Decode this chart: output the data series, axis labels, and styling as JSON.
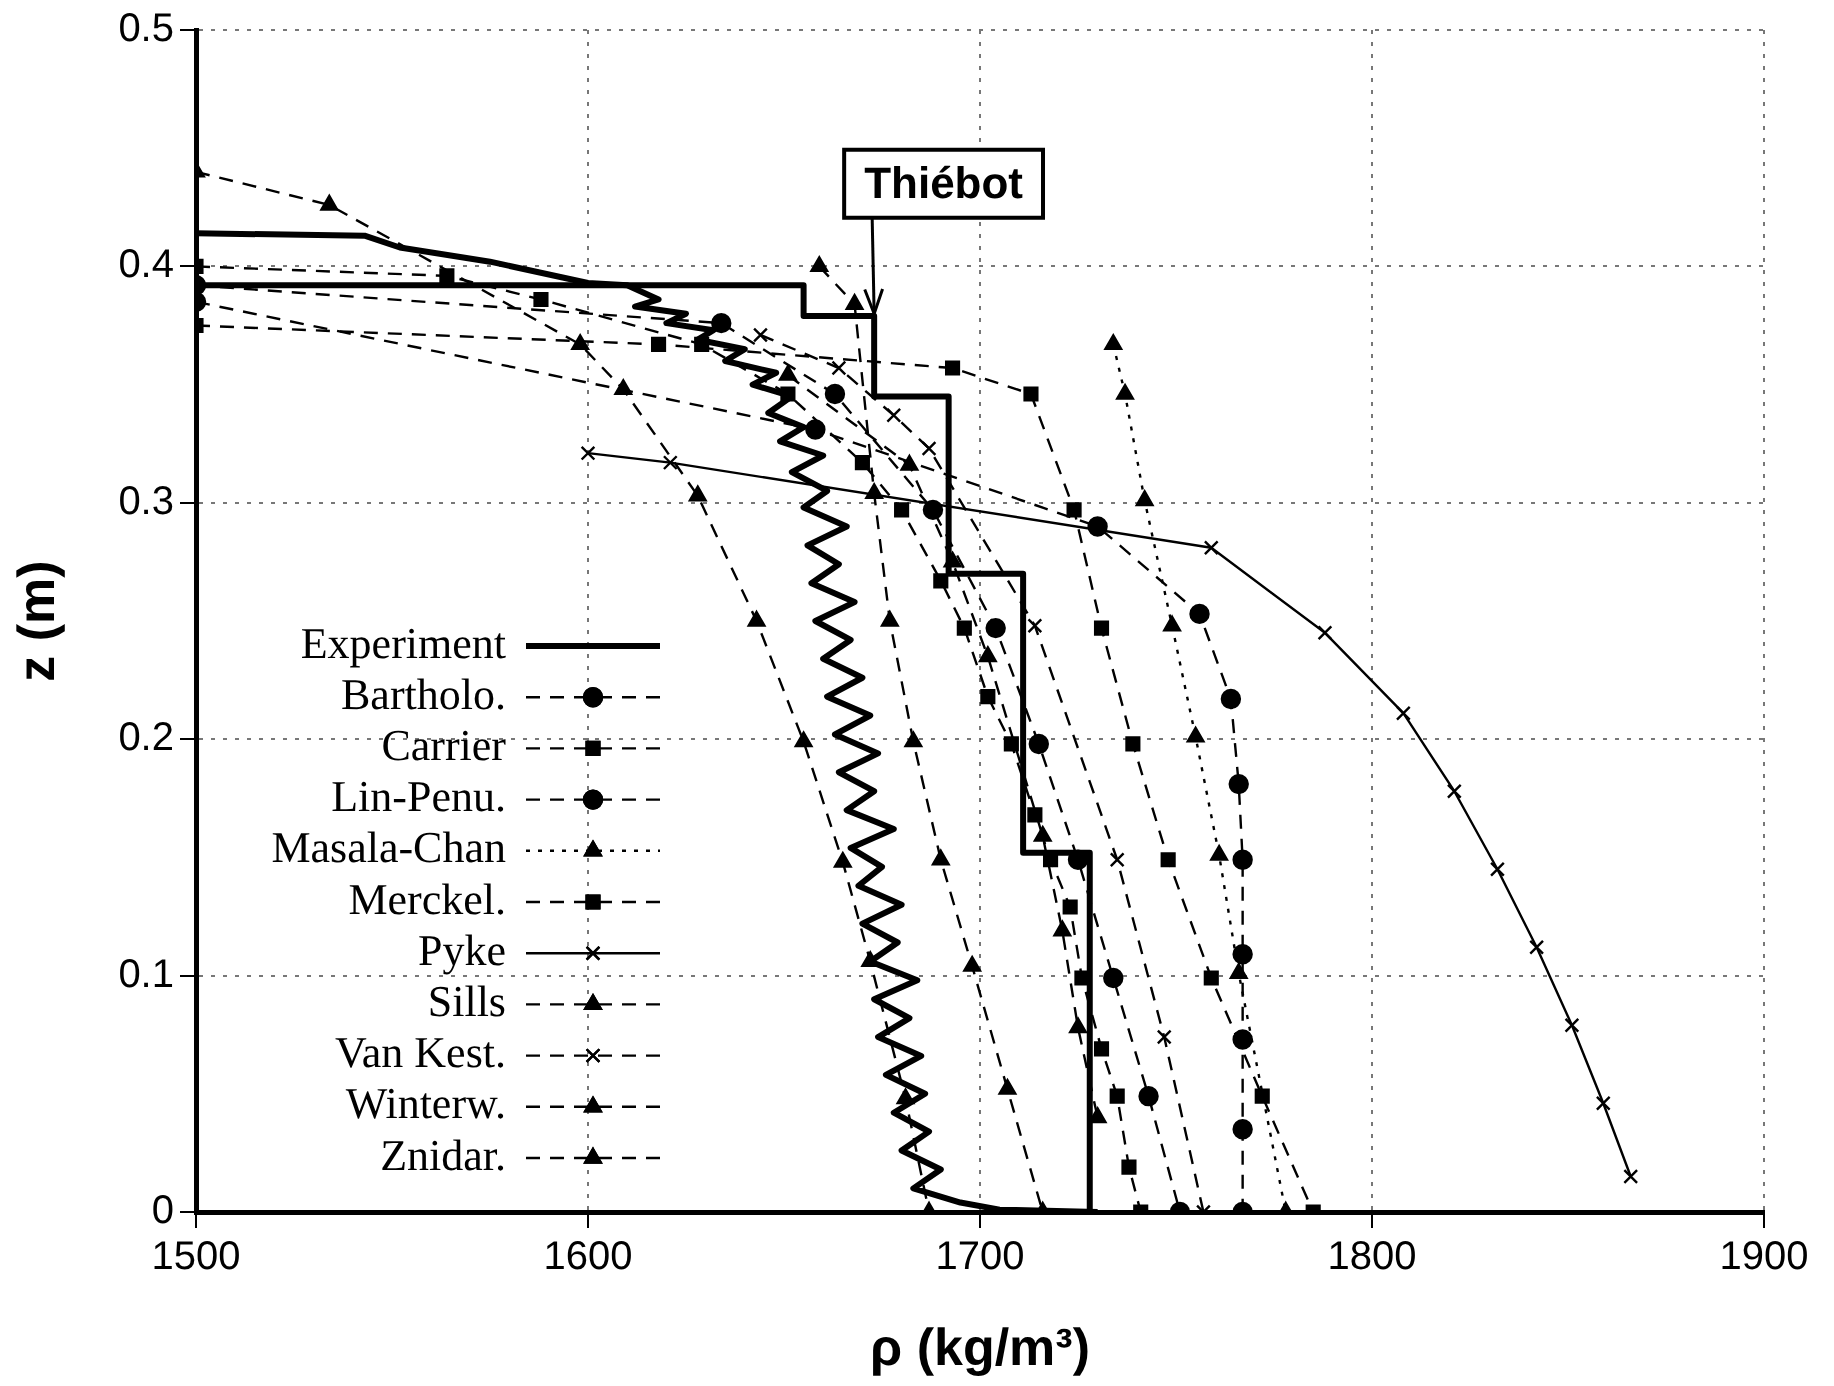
{
  "chart_data": {
    "type": "line",
    "xlabel": "ρ (kg/m³)",
    "ylabel": "z (m)",
    "xlim": [
      1500,
      1900
    ],
    "xticks": [
      1500,
      1600,
      1700,
      1800,
      1900
    ],
    "ylim": [
      0,
      0.5
    ],
    "yticks": [
      0,
      0.1,
      0.2,
      0.3,
      0.4,
      0.5
    ],
    "grid": true,
    "legend": "bottom left",
    "annotations": [
      {
        "text": "Thiébot",
        "x": 1673,
        "y": 0.38
      }
    ],
    "series": [
      {
        "name": "Experiment",
        "color": "#000000",
        "marker": "none",
        "line_style": "solid",
        "x": [
          1500,
          1543,
          1552,
          1575,
          1600,
          1610,
          1618,
          1612,
          1625,
          1620,
          1632,
          1628,
          1640,
          1635,
          1648,
          1642,
          1652,
          1646,
          1655,
          1649,
          1660,
          1652,
          1661,
          1655,
          1666,
          1656,
          1664,
          1657,
          1668,
          1658,
          1667,
          1660,
          1670,
          1661,
          1672,
          1663,
          1674,
          1664,
          1673,
          1666,
          1678,
          1667,
          1675,
          1669,
          1680,
          1670,
          1679,
          1672,
          1684,
          1673,
          1682,
          1674,
          1685,
          1676,
          1686,
          1678,
          1687,
          1680,
          1690,
          1683,
          1695,
          1705,
          1730
        ],
        "values": [
          0.414,
          0.413,
          0.408,
          0.402,
          0.393,
          0.392,
          0.386,
          0.383,
          0.38,
          0.376,
          0.373,
          0.369,
          0.365,
          0.36,
          0.355,
          0.35,
          0.345,
          0.338,
          0.332,
          0.326,
          0.32,
          0.313,
          0.305,
          0.298,
          0.29,
          0.282,
          0.274,
          0.266,
          0.258,
          0.25,
          0.242,
          0.234,
          0.226,
          0.218,
          0.21,
          0.202,
          0.194,
          0.186,
          0.178,
          0.17,
          0.162,
          0.154,
          0.146,
          0.138,
          0.13,
          0.122,
          0.114,
          0.106,
          0.098,
          0.09,
          0.082,
          0.074,
          0.066,
          0.058,
          0.05,
          0.042,
          0.034,
          0.026,
          0.018,
          0.01,
          0.004,
          0.001,
          0
        ]
      },
      {
        "name": "Bartholo.",
        "color": "#000000",
        "marker": "circle",
        "line_style": "dashed",
        "x": [
          1500,
          1634,
          1663,
          1688,
          1704,
          1715,
          1725,
          1734,
          1743,
          1751
        ],
        "values": [
          0.392,
          0.376,
          0.346,
          0.297,
          0.247,
          0.198,
          0.149,
          0.099,
          0.049,
          0
        ]
      },
      {
        "name": "Carrier",
        "color": "#000000",
        "marker": "square",
        "line_style": "dashed",
        "x": [
          1500,
          1564,
          1588,
          1629,
          1651,
          1670,
          1680,
          1690,
          1696,
          1702,
          1708,
          1714,
          1718,
          1723,
          1726,
          1731,
          1735,
          1738,
          1741
        ],
        "values": [
          0.4,
          0.396,
          0.386,
          0.367,
          0.346,
          0.317,
          0.297,
          0.267,
          0.247,
          0.218,
          0.198,
          0.168,
          0.149,
          0.129,
          0.099,
          0.069,
          0.049,
          0.019,
          0
        ]
      },
      {
        "name": "Lin-Penu.",
        "color": "#000000",
        "marker": "circle",
        "line_style": "dashed",
        "x": [
          1500,
          1658,
          1730,
          1756,
          1764,
          1766,
          1767,
          1767,
          1767,
          1767,
          1767
        ],
        "values": [
          0.385,
          0.331,
          0.29,
          0.253,
          0.217,
          0.181,
          0.149,
          0.109,
          0.073,
          0.035,
          0
        ]
      },
      {
        "name": "Masala-Chan",
        "color": "#000000",
        "marker": "triangle",
        "line_style": "dotted",
        "x": [
          1734,
          1737,
          1742,
          1749,
          1755,
          1761,
          1766,
          1778
        ],
        "values": [
          0.367,
          0.346,
          0.301,
          0.248,
          0.201,
          0.151,
          0.101,
          0
        ]
      },
      {
        "name": "Merckel.",
        "color": "#000000",
        "marker": "square",
        "line_style": "dashed",
        "x": [
          1500,
          1618,
          1693,
          1713,
          1724,
          1731,
          1739,
          1748,
          1759,
          1772,
          1785
        ],
        "values": [
          0.375,
          0.367,
          0.357,
          0.346,
          0.297,
          0.247,
          0.198,
          0.149,
          0.099,
          0.049,
          0
        ]
      },
      {
        "name": "Pyke",
        "color": "#000000",
        "marker": "cross",
        "line_style": "solid",
        "x": [
          1600,
          1621,
          1759,
          1788,
          1808,
          1821,
          1832,
          1842,
          1851,
          1859,
          1866
        ],
        "values": [
          0.321,
          0.317,
          0.281,
          0.245,
          0.211,
          0.178,
          0.145,
          0.112,
          0.079,
          0.046,
          0.015
        ]
      },
      {
        "name": "Sills",
        "color": "#000000",
        "marker": "triangle",
        "line_style": "dashed",
        "x": [
          1651,
          1682,
          1693,
          1702,
          1716,
          1721,
          1725,
          1730
        ],
        "values": [
          0.354,
          0.316,
          0.275,
          0.235,
          0.159,
          0.119,
          0.078,
          0.04
        ]
      },
      {
        "name": "Van Kest.",
        "color": "#000000",
        "marker": "cross",
        "line_style": "dashed",
        "x": [
          1644,
          1664,
          1678,
          1687,
          1714,
          1735,
          1747,
          1757
        ],
        "values": [
          0.371,
          0.357,
          0.337,
          0.323,
          0.248,
          0.149,
          0.074,
          0
        ]
      },
      {
        "name": "Winterw.",
        "color": "#000000",
        "marker": "triangle",
        "line_style": "dashed",
        "x": [
          1659,
          1668,
          1673,
          1677,
          1683,
          1690,
          1698,
          1707,
          1716
        ],
        "values": [
          0.4,
          0.384,
          0.304,
          0.25,
          0.199,
          0.149,
          0.104,
          0.052,
          0
        ]
      },
      {
        "name": "Znidar.",
        "color": "#000000",
        "marker": "triangle",
        "line_style": "dashed",
        "x": [
          1500,
          1534,
          1598,
          1609,
          1628,
          1643,
          1655,
          1665,
          1672,
          1681,
          1687
        ],
        "values": [
          0.44,
          0.426,
          0.367,
          0.348,
          0.303,
          0.25,
          0.199,
          0.148,
          0.106,
          0.048,
          0
        ]
      },
      {
        "color": "#000000",
        "marker": "none",
        "line_style": "solid",
        "x": [
          1500,
          1655,
          1655,
          1673,
          1673,
          1692,
          1692,
          1711,
          1711,
          1728,
          1728
        ],
        "values": [
          0.392,
          0.392,
          0.379,
          0.379,
          0.345,
          0.345,
          0.27,
          0.27,
          0.152,
          0.152,
          0
        ]
      }
    ]
  }
}
